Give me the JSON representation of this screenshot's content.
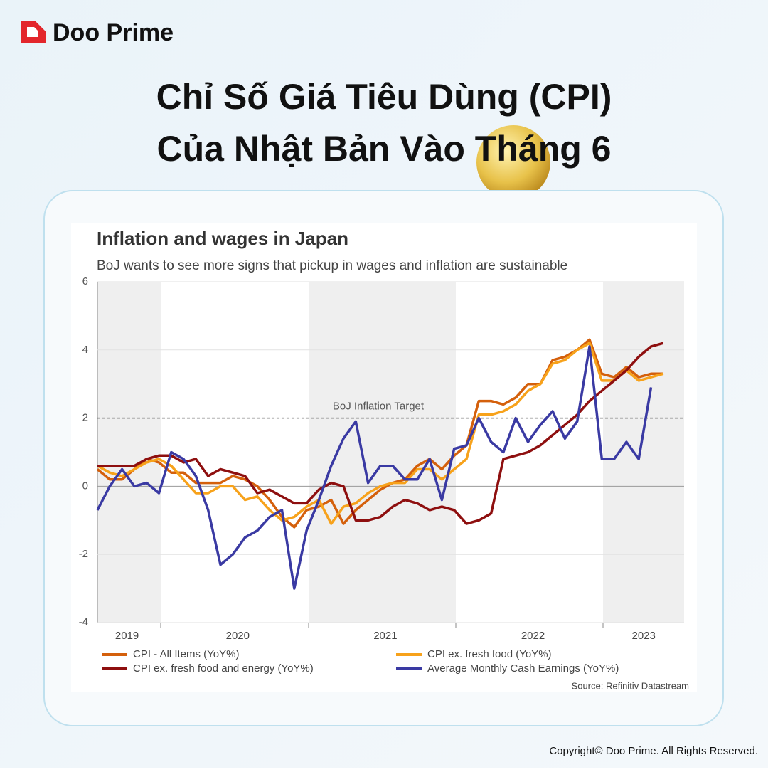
{
  "brand": "Doo Prime",
  "headline": [
    "Chỉ Số Giá Tiêu Dùng (CPI)",
    "Của Nhật Bản Vào Tháng 6"
  ],
  "copyright": "Copyright© Doo Prime. All Rights Reserved.",
  "chart_data": {
    "type": "line",
    "title": "Inflation and wages in Japan",
    "subtitle": "BoJ wants to see more signs that pickup in wages and inflation are sustainable",
    "source": "Source: Refinitiv Datastream",
    "categories": [
      null,
      null,
      "2019",
      null,
      null,
      null,
      null,
      null,
      null,
      null,
      null,
      "2020",
      null,
      null,
      null,
      null,
      null,
      null,
      null,
      null,
      null,
      null,
      null,
      "2021",
      null,
      null,
      null,
      null,
      null,
      null,
      null,
      null,
      null,
      null,
      null,
      "2022",
      null,
      null,
      null,
      null,
      null,
      null,
      null,
      null,
      "2023",
      null,
      null
    ],
    "ylim": [
      -4,
      6
    ],
    "yticks": [
      -4,
      -2,
      0,
      2,
      4,
      6
    ],
    "grid": true,
    "target": {
      "value": 2,
      "label": "BoJ Inflation Target"
    },
    "series": [
      {
        "name": "CPI - All Items (YoY%)",
        "color": "#d4600c",
        "values": [
          0.5,
          0.2,
          0.2,
          0.5,
          0.8,
          0.7,
          0.4,
          0.4,
          0.1,
          0.1,
          0.1,
          0.3,
          0.2,
          0,
          -0.4,
          -0.9,
          -1.2,
          -0.7,
          -0.6,
          -0.4,
          -1.1,
          -0.7,
          -0.4,
          -0.1,
          0.1,
          0.2,
          0.6,
          0.8,
          0.5,
          0.9,
          1.2,
          2.5,
          2.5,
          2.4,
          2.6,
          3.0,
          3.0,
          3.7,
          3.8,
          4.0,
          4.3,
          3.3,
          3.2,
          3.5,
          3.2,
          3.3,
          3.3
        ]
      },
      {
        "name": "CPI ex. fresh food (YoY%)",
        "color": "#f7a21b",
        "values": [
          0.6,
          0.4,
          0.3,
          0.5,
          0.7,
          0.8,
          0.6,
          0.2,
          -0.2,
          -0.2,
          0,
          0,
          -0.4,
          -0.3,
          -0.7,
          -1.0,
          -0.9,
          -0.6,
          -0.4,
          -1.1,
          -0.6,
          -0.5,
          -0.2,
          0,
          0.1,
          0.1,
          0.5,
          0.5,
          0.2,
          0.5,
          0.8,
          2.1,
          2.1,
          2.2,
          2.4,
          2.8,
          3.0,
          3.6,
          3.7,
          4.0,
          4.2,
          3.1,
          3.1,
          3.4,
          3.1,
          3.2,
          3.3
        ]
      },
      {
        "name": "CPI ex. fresh food and energy (YoY%)",
        "color": "#8e0f0f",
        "values": [
          0.6,
          0.6,
          0.6,
          0.6,
          0.8,
          0.9,
          0.9,
          0.7,
          0.8,
          0.3,
          0.5,
          0.4,
          0.3,
          -0.2,
          -0.1,
          -0.3,
          -0.5,
          -0.5,
          -0.1,
          0.1,
          0,
          -1.0,
          -1.0,
          -0.9,
          -0.6,
          -0.4,
          -0.5,
          -0.7,
          -0.6,
          -0.7,
          -1.1,
          -1.0,
          -0.8,
          0.8,
          0.9,
          1.0,
          1.2,
          1.5,
          1.8,
          2.1,
          2.5,
          2.8,
          3.1,
          3.4,
          3.8,
          4.1,
          4.2
        ]
      },
      {
        "name": "Average Monthly Cash Earnings (YoY%)",
        "color": "#3a3aa3",
        "values": [
          -0.7,
          0,
          0.5,
          0,
          0.1,
          -0.2,
          1.0,
          0.8,
          0.3,
          -0.7,
          -2.3,
          -2.0,
          -1.5,
          -1.3,
          -0.9,
          -0.7,
          -3.0,
          -1.3,
          -0.4,
          0.6,
          1.4,
          1.9,
          0.1,
          0.6,
          0.6,
          0.2,
          0.2,
          0.8,
          -0.4,
          1.1,
          1.2,
          2.0,
          1.3,
          1.0,
          2.0,
          1.3,
          1.8,
          2.2,
          1.4,
          1.9,
          4.1,
          0.8,
          0.8,
          1.3,
          0.8,
          2.9,
          null
        ]
      }
    ]
  }
}
